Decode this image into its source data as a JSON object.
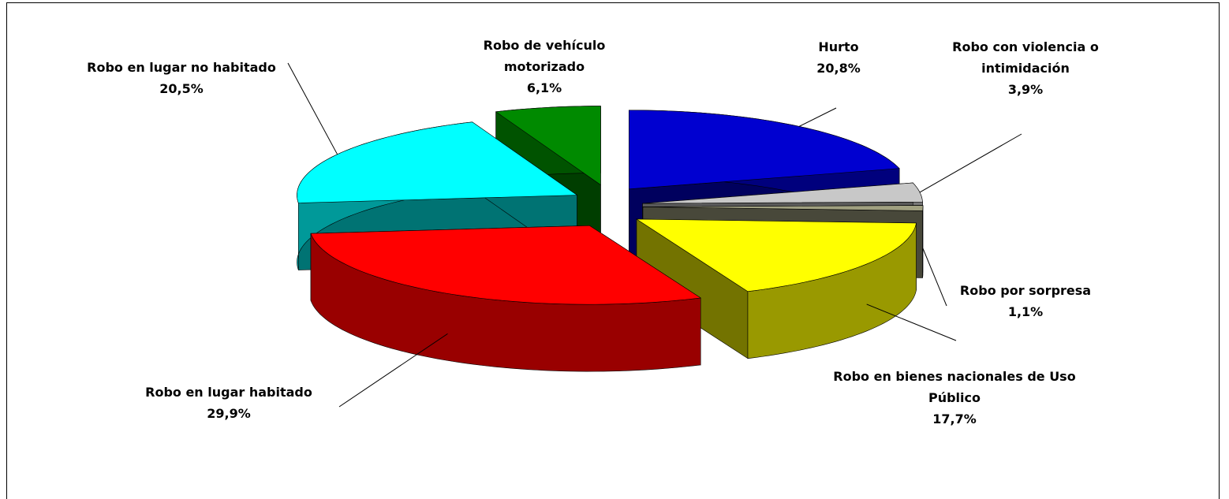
{
  "chart_data": {
    "type": "pie",
    "categories": [
      "Hurto",
      "Robo con violencia o intimidación",
      "Robo por sorpresa",
      "Robo en bienes nacionales de Uso Público",
      "Robo en lugar habitado",
      "Robo en lugar no habitado",
      "Robo de vehículo motorizado"
    ],
    "values": [
      20.8,
      3.9,
      1.1,
      17.7,
      29.9,
      20.5,
      6.1
    ],
    "value_labels": [
      "20,8%",
      "3,9%",
      "1,1%",
      "17,7%",
      "29,9%",
      "20,5%",
      "6,1%"
    ],
    "colors": [
      "#0000d0",
      "#c8c8c8",
      "#a0a080",
      "#ffff00",
      "#ff0000",
      "#00ffff",
      "#008a00"
    ],
    "three_d": true,
    "exploded": true
  }
}
